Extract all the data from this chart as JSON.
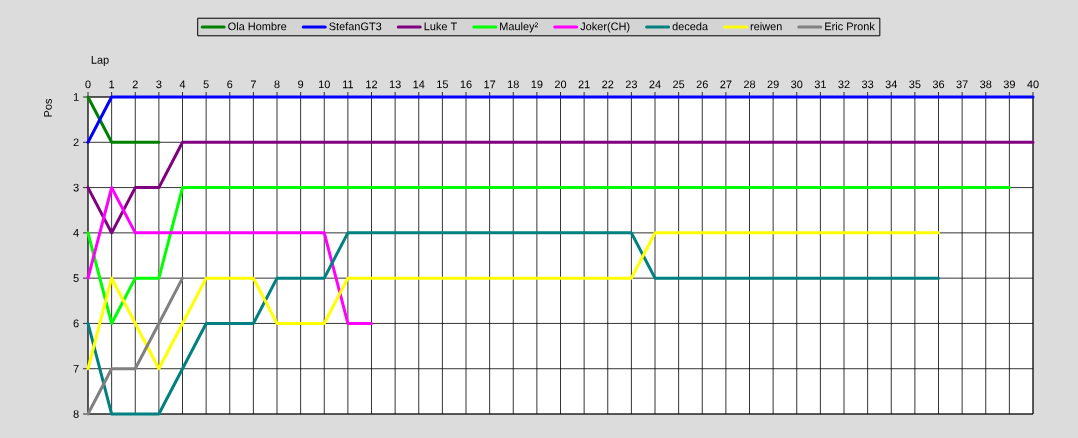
{
  "chart_data": {
    "type": "line",
    "xlabel": "Lap",
    "ylabel": "Pos",
    "x": [
      0,
      1,
      2,
      3,
      4,
      5,
      6,
      7,
      8,
      9,
      10,
      11,
      12,
      13,
      14,
      15,
      16,
      17,
      18,
      19,
      20,
      21,
      22,
      23,
      24,
      25,
      26,
      27,
      28,
      29,
      30,
      31,
      32,
      33,
      34,
      35,
      36,
      37,
      38,
      39,
      40
    ],
    "xlim": [
      0,
      40
    ],
    "xticks": [
      0,
      1,
      2,
      3,
      4,
      5,
      6,
      7,
      8,
      9,
      10,
      11,
      12,
      13,
      14,
      15,
      16,
      17,
      18,
      19,
      20,
      21,
      22,
      23,
      24,
      25,
      26,
      27,
      28,
      29,
      30,
      31,
      32,
      33,
      34,
      35,
      36,
      37,
      38,
      39,
      40
    ],
    "ylim": [
      8,
      1
    ],
    "yticks": [
      1,
      2,
      3,
      4,
      5,
      6,
      7,
      8
    ],
    "grid": true,
    "legend": "top",
    "series": [
      {
        "name": "Ola Hombre",
        "color": "#008000",
        "values": [
          1,
          2,
          2,
          2,
          null,
          null,
          null,
          null,
          null,
          null,
          null,
          null,
          null,
          null,
          null,
          null,
          null,
          null,
          null,
          null,
          null,
          null,
          null,
          null,
          null,
          null,
          null,
          null,
          null,
          null,
          null,
          null,
          null,
          null,
          null,
          null,
          null,
          null,
          null,
          null,
          null
        ]
      },
      {
        "name": "StefanGT3",
        "color": "#0000ff",
        "values": [
          2,
          1,
          1,
          1,
          1,
          1,
          1,
          1,
          1,
          1,
          1,
          1,
          1,
          1,
          1,
          1,
          1,
          1,
          1,
          1,
          1,
          1,
          1,
          1,
          1,
          1,
          1,
          1,
          1,
          1,
          1,
          1,
          1,
          1,
          1,
          1,
          1,
          1,
          1,
          1,
          1
        ]
      },
      {
        "name": "Luke T",
        "color": "#800080",
        "values": [
          3,
          4,
          3,
          3,
          2,
          2,
          2,
          2,
          2,
          2,
          2,
          2,
          2,
          2,
          2,
          2,
          2,
          2,
          2,
          2,
          2,
          2,
          2,
          2,
          2,
          2,
          2,
          2,
          2,
          2,
          2,
          2,
          2,
          2,
          2,
          2,
          2,
          2,
          2,
          2,
          2
        ]
      },
      {
        "name": "Mauley²",
        "color": "#00ff00",
        "values": [
          4,
          6,
          5,
          5,
          3,
          3,
          3,
          3,
          3,
          3,
          3,
          3,
          3,
          3,
          3,
          3,
          3,
          3,
          3,
          3,
          3,
          3,
          3,
          3,
          3,
          3,
          3,
          3,
          3,
          3,
          3,
          3,
          3,
          3,
          3,
          3,
          3,
          3,
          3,
          3,
          null
        ]
      },
      {
        "name": "Joker(CH)",
        "color": "#ff00ff",
        "values": [
          5,
          3,
          4,
          4,
          4,
          4,
          4,
          4,
          4,
          4,
          4,
          6,
          6,
          null,
          null,
          null,
          null,
          null,
          null,
          null,
          null,
          null,
          null,
          null,
          null,
          null,
          null,
          null,
          null,
          null,
          null,
          null,
          null,
          null,
          null,
          null,
          null,
          null,
          null,
          null,
          null
        ]
      },
      {
        "name": "deceda",
        "color": "#008080",
        "values": [
          6,
          8,
          8,
          8,
          7,
          6,
          6,
          6,
          5,
          5,
          5,
          4,
          4,
          4,
          4,
          4,
          4,
          4,
          4,
          4,
          4,
          4,
          4,
          4,
          5,
          5,
          5,
          5,
          5,
          5,
          5,
          5,
          5,
          5,
          5,
          5,
          5,
          null,
          null,
          null,
          null
        ]
      },
      {
        "name": "reiwen",
        "color": "#ffff00",
        "values": [
          7,
          5,
          6,
          7,
          6,
          5,
          5,
          5,
          6,
          6,
          6,
          5,
          5,
          5,
          5,
          5,
          5,
          5,
          5,
          5,
          5,
          5,
          5,
          5,
          4,
          4,
          4,
          4,
          4,
          4,
          4,
          4,
          4,
          4,
          4,
          4,
          4,
          null,
          null,
          null,
          null
        ]
      },
      {
        "name": "Eric Pronk",
        "color": "#808080",
        "values": [
          8,
          7,
          7,
          6,
          5,
          null,
          null,
          null,
          null,
          null,
          null,
          null,
          null,
          null,
          null,
          null,
          null,
          null,
          null,
          null,
          null,
          null,
          null,
          null,
          null,
          null,
          null,
          null,
          null,
          null,
          null,
          null,
          null,
          null,
          null,
          null,
          null,
          null,
          null,
          null,
          null
        ]
      }
    ]
  }
}
